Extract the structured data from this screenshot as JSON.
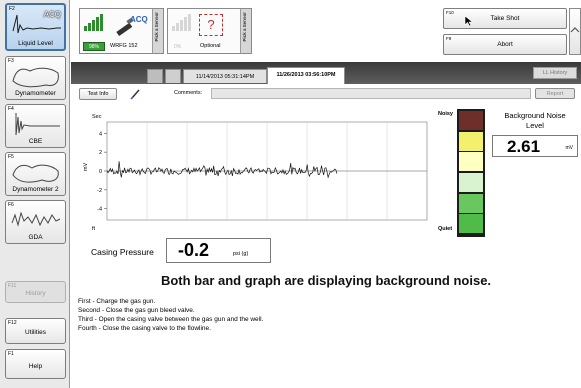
{
  "nav": {
    "items": [
      {
        "fkey": "F2",
        "label": "Liquid Level"
      },
      {
        "fkey": "F3",
        "label": "Dynamometer"
      },
      {
        "fkey": "F4",
        "label": "CBE"
      },
      {
        "fkey": "F5",
        "label": "Dynamometer 2"
      },
      {
        "fkey": "F6",
        "label": "GDA"
      },
      {
        "fkey": "F11",
        "label": "History"
      },
      {
        "fkey": "F12",
        "label": "Utilities"
      },
      {
        "fkey": "F1",
        "label": "Help"
      }
    ],
    "acq_label": "ACQ"
  },
  "sensors": {
    "sensor1": {
      "battery": "98%",
      "acq": "ACQ",
      "name": "WRFG 152",
      "side": "Pick a Sensor"
    },
    "sensor2": {
      "battery": "0%",
      "symbol": "?",
      "name": "Optional",
      "side": "Pick a Sensor"
    }
  },
  "actions": {
    "take_shot": {
      "fkey": "F10",
      "label": "Take Shot"
    },
    "abort": {
      "fkey": "F9",
      "label": "Abort"
    }
  },
  "tabs": {
    "t1": "11/14/2013 05:31:14PM",
    "t2": "11/26/2013 03:56:10PM",
    "ll_history": "LL History"
  },
  "toolbar": {
    "test_info": "Test Info",
    "comments_label": "Comments:",
    "comments_value": "",
    "report": "Report"
  },
  "graph": {
    "ylabel": "mV",
    "top_unit": "Sec",
    "bottom_unit": "ft",
    "yticks": [
      "4",
      "2",
      "0",
      "-2",
      "-4"
    ]
  },
  "noise": {
    "noisy": "Noisy",
    "quiet": "Quiet",
    "title_line1": "Background Noise",
    "title_line2": "Level",
    "value": "2.61",
    "unit": "mV",
    "segment_colors": [
      "#6e2f2a",
      "#f3f06e",
      "#ffffc2",
      "#d9f2d0",
      "#68c85f",
      "#4fbb48"
    ],
    "active_fraction": 0.667
  },
  "casing": {
    "label": "Casing Pressure",
    "value": "-0.2",
    "unit": "psi (g)"
  },
  "annotation": "Both bar and graph are displaying background noise.",
  "instructions": [
    "First - Charge the gas gun.",
    "Second - Close the gas gun bleed valve.",
    "Third - Open the casing valve between the gas gun and the well.",
    "Fourth - Close the casing valve to the flowline."
  ]
}
